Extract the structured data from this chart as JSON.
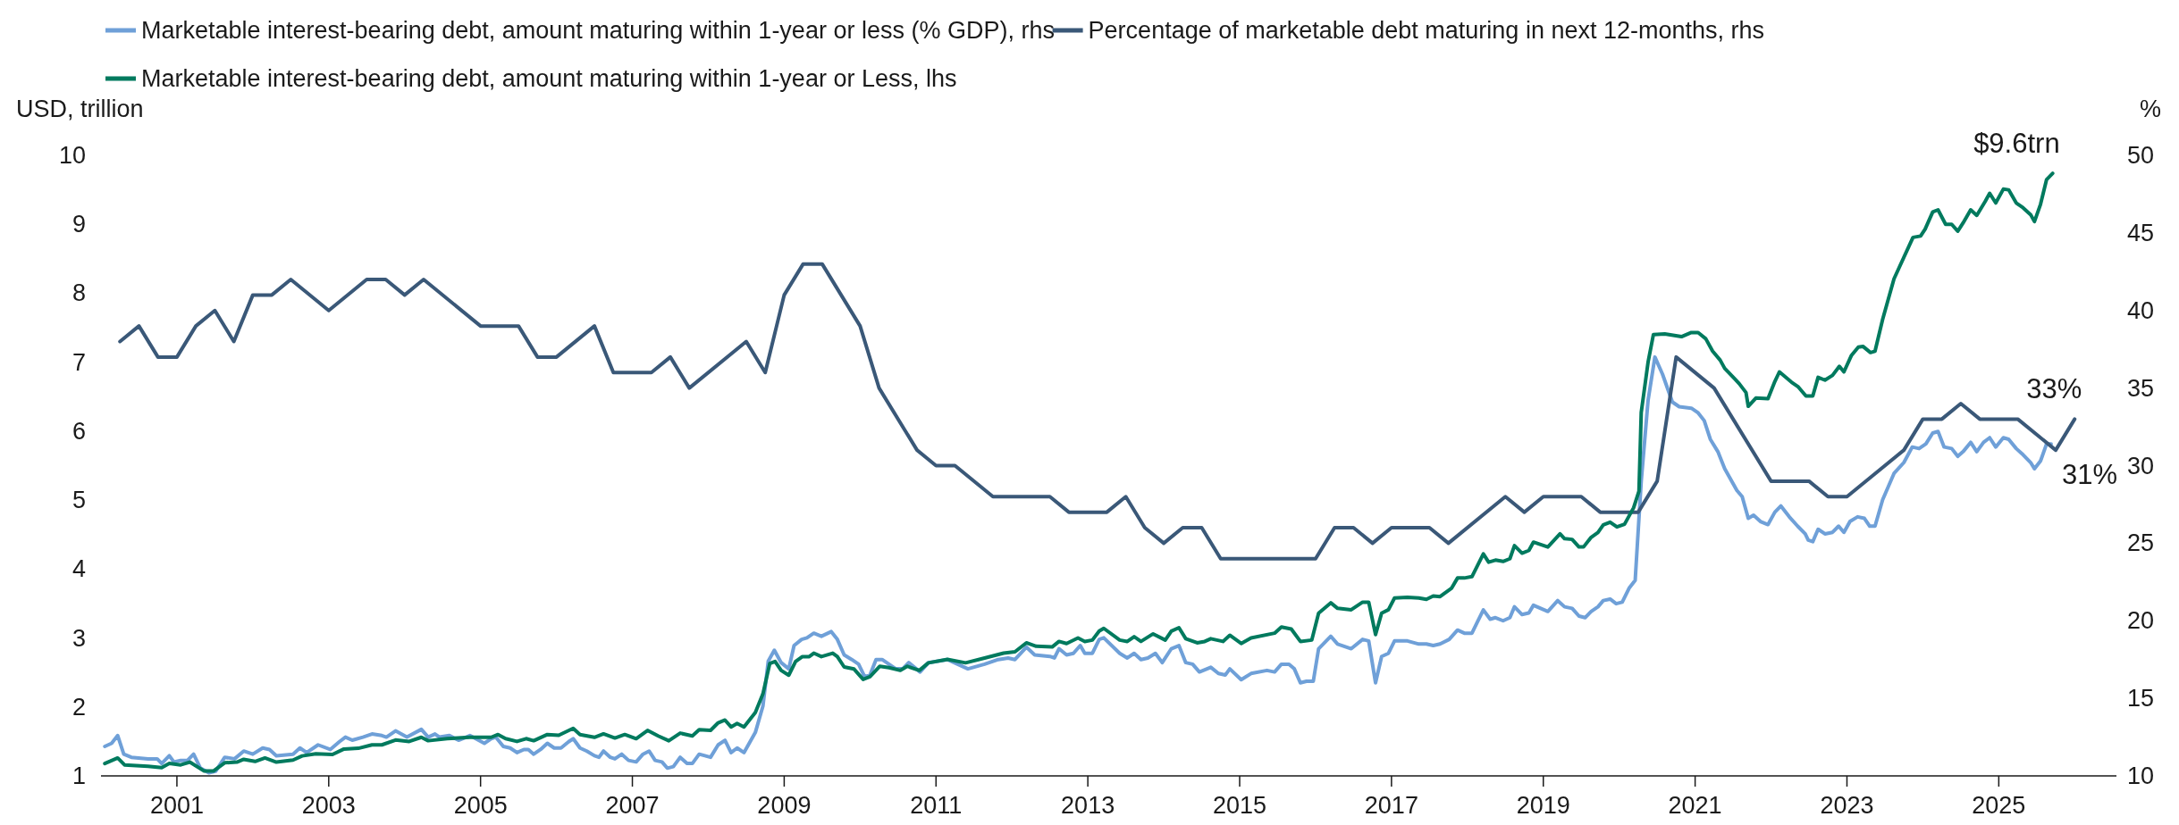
{
  "chart_data": {
    "type": "line",
    "ylabel": "USD, trillion",
    "y2label": "%",
    "legend": "top",
    "xlim": [
      2000,
      2026.55
    ],
    "xticks": [
      2001,
      2003,
      2005,
      2007,
      2009,
      2011,
      2013,
      2015,
      2017,
      2019,
      2021,
      2023,
      2025
    ],
    "ylim": [
      1,
      10
    ],
    "yticks": [
      1,
      2,
      3,
      4,
      5,
      6,
      7,
      8,
      9,
      10
    ],
    "y2lim": [
      10,
      50
    ],
    "y2ticks": [
      10,
      15,
      20,
      25,
      30,
      35,
      40,
      45,
      50
    ],
    "annotations": [
      "31%",
      "33%",
      "$9.6trn"
    ],
    "series": [
      {
        "name": "Marketable interest-bearing debt, amount maturing within 1-year or less (% GDP), rhs",
        "color": "#6fa0d8",
        "axis": "y2",
        "x": [
          2000.05,
          2000.14,
          2000.22,
          2000.3,
          2000.4,
          2000.62,
          2000.74,
          2000.8,
          2000.9,
          2000.96,
          2001.05,
          2001.14,
          2001.22,
          2001.31,
          2001.42,
          2001.51,
          2001.63,
          2001.76,
          2001.88,
          2002.0,
          2002.13,
          2002.22,
          2002.31,
          2002.53,
          2002.62,
          2002.71,
          2002.86,
          2003.02,
          2003.14,
          2003.22,
          2003.31,
          2003.45,
          2003.57,
          2003.7,
          2003.76,
          2003.88,
          2004.03,
          2004.22,
          2004.31,
          2004.4,
          2004.46,
          2004.59,
          2004.71,
          2004.86,
          2005.05,
          2005.14,
          2005.2,
          2005.3,
          2005.39,
          2005.48,
          2005.57,
          2005.63,
          2005.7,
          2005.79,
          2005.88,
          2005.97,
          2006.06,
          2006.16,
          2006.22,
          2006.31,
          2006.4,
          2006.5,
          2006.56,
          2006.62,
          2006.71,
          2006.77,
          2006.86,
          2006.95,
          2007.05,
          2007.14,
          2007.22,
          2007.3,
          2007.39,
          2007.46,
          2007.54,
          2007.63,
          2007.72,
          2007.79,
          2007.88,
          2008.03,
          2008.13,
          2008.22,
          2008.3,
          2008.38,
          2008.47,
          2008.62,
          2008.72,
          2008.79,
          2008.87,
          2008.96,
          2009.06,
          2009.13,
          2009.23,
          2009.3,
          2009.39,
          2009.49,
          2009.62,
          2009.7,
          2009.79,
          2009.89,
          2009.98,
          2010.06,
          2010.13,
          2010.21,
          2010.29,
          2010.47,
          2010.56,
          2010.64,
          2010.79,
          2010.9,
          2011.15,
          2011.42,
          2011.64,
          2011.82,
          2011.95,
          2012.04,
          2012.19,
          2012.3,
          2012.5,
          2012.56,
          2012.62,
          2012.72,
          2012.81,
          2012.9,
          2012.96,
          2013.06,
          2013.15,
          2013.21,
          2013.42,
          2013.52,
          2013.61,
          2013.7,
          2013.79,
          2013.89,
          2013.98,
          2014.1,
          2014.2,
          2014.29,
          2014.38,
          2014.47,
          2014.62,
          2014.72,
          2014.81,
          2014.87,
          2015.02,
          2015.15,
          2015.36,
          2015.46,
          2015.55,
          2015.65,
          2015.72,
          2015.8,
          2015.88,
          2015.97,
          2016.04,
          2016.2,
          2016.29,
          2016.47,
          2016.62,
          2016.7,
          2016.79,
          2016.87,
          2016.96,
          2017.04,
          2017.21,
          2017.36,
          2017.46,
          2017.55,
          2017.64,
          2017.76,
          2017.87,
          2017.96,
          2018.06,
          2018.12,
          2018.21,
          2018.3,
          2018.37,
          2018.47,
          2018.56,
          2018.62,
          2018.72,
          2018.81,
          2018.87,
          2019.06,
          2019.19,
          2019.28,
          2019.38,
          2019.47,
          2019.55,
          2019.63,
          2019.72,
          2019.79,
          2019.88,
          2019.96,
          2020.04,
          2020.13,
          2020.21,
          2020.29,
          2020.38,
          2020.47,
          2020.57,
          2020.7,
          2020.79,
          2020.95,
          2021.04,
          2021.12,
          2021.2,
          2021.3,
          2021.39,
          2021.55,
          2021.62,
          2021.7,
          2021.77,
          2021.86,
          2021.96,
          2022.05,
          2022.13,
          2022.24,
          2022.35,
          2022.45,
          2022.49,
          2022.55,
          2022.62,
          2022.71,
          2022.81,
          2022.89,
          2022.96,
          2023.04,
          2023.14,
          2023.23,
          2023.3,
          2023.37,
          2023.47,
          2023.62,
          2023.75,
          2023.86,
          2023.95,
          2024.04,
          2024.13,
          2024.2,
          2024.28,
          2024.38,
          2024.46,
          2024.53,
          2024.63,
          2024.71,
          2024.8,
          2024.88,
          2024.96,
          2025.06,
          2025.13,
          2025.23,
          2025.32,
          2025.42,
          2025.47,
          2025.55,
          2025.63,
          2025.69
        ],
        "values": [
          11.9,
          12.1,
          12.6,
          11.4,
          11.2,
          11.1,
          11.1,
          10.8,
          11.3,
          10.9,
          11.0,
          11.0,
          11.4,
          10.5,
          10.2,
          10.3,
          11.2,
          11.1,
          11.6,
          11.4,
          11.8,
          11.7,
          11.3,
          11.4,
          11.8,
          11.5,
          12.0,
          11.7,
          12.2,
          12.5,
          12.3,
          12.5,
          12.7,
          12.6,
          12.5,
          12.9,
          12.5,
          13.0,
          12.5,
          12.7,
          12.5,
          12.6,
          12.3,
          12.6,
          12.1,
          12.4,
          12.5,
          11.9,
          11.8,
          11.5,
          11.7,
          11.7,
          11.4,
          11.7,
          12.1,
          11.8,
          11.8,
          12.2,
          12.4,
          11.8,
          11.6,
          11.3,
          11.2,
          11.6,
          11.2,
          11.1,
          11.4,
          11.0,
          10.9,
          11.4,
          11.6,
          11.0,
          10.9,
          10.5,
          10.6,
          11.2,
          10.8,
          10.8,
          11.4,
          11.2,
          12.0,
          12.3,
          11.5,
          11.8,
          11.5,
          12.8,
          14.5,
          17.4,
          18.1,
          17.3,
          16.9,
          18.4,
          18.8,
          18.9,
          19.2,
          19.0,
          19.3,
          18.8,
          17.8,
          17.5,
          17.2,
          16.4,
          16.5,
          17.5,
          17.5,
          16.9,
          16.9,
          17.3,
          16.7,
          17.3,
          17.5,
          16.9,
          17.2,
          17.5,
          17.6,
          17.5,
          18.3,
          17.8,
          17.7,
          17.6,
          18.2,
          17.8,
          17.9,
          18.4,
          17.9,
          17.9,
          18.8,
          18.9,
          17.9,
          17.6,
          17.9,
          17.5,
          17.6,
          17.9,
          17.3,
          18.2,
          18.4,
          17.3,
          17.2,
          16.7,
          17.0,
          16.6,
          16.5,
          16.9,
          16.2,
          16.6,
          16.8,
          16.7,
          17.2,
          17.2,
          16.9,
          16.0,
          16.1,
          16.1,
          18.2,
          19.0,
          18.5,
          18.2,
          18.8,
          18.7,
          16.0,
          17.7,
          17.9,
          18.7,
          18.7,
          18.5,
          18.5,
          18.4,
          18.5,
          18.8,
          19.4,
          19.2,
          19.2,
          19.8,
          20.7,
          20.1,
          20.2,
          20.0,
          20.2,
          20.9,
          20.4,
          20.5,
          21.0,
          20.6,
          21.3,
          20.9,
          20.8,
          20.3,
          20.2,
          20.6,
          20.9,
          21.3,
          21.4,
          21.1,
          21.2,
          22.1,
          22.6,
          29.0,
          34.2,
          37.0,
          35.9,
          34.1,
          33.8,
          33.7,
          33.4,
          32.9,
          31.7,
          30.9,
          29.8,
          28.4,
          28.0,
          26.6,
          26.8,
          26.4,
          26.2,
          27.0,
          27.4,
          26.7,
          26.1,
          25.6,
          25.2,
          25.1,
          25.9,
          25.6,
          25.7,
          26.1,
          25.7,
          26.4,
          26.7,
          26.6,
          26.1,
          26.1,
          27.8,
          29.5,
          30.2,
          31.2,
          31.1,
          31.4,
          32.1,
          32.2,
          31.2,
          31.1,
          30.6,
          30.9,
          31.5,
          30.9,
          31.5,
          31.8,
          31.2,
          31.8,
          31.7,
          31.1,
          30.7,
          30.2,
          29.8,
          30.3,
          31.4,
          31.4
        ]
      },
      {
        "name": "Percentage of marketable debt maturing in next 12-months, rhs",
        "color": "#3a5878",
        "axis": "y2",
        "x": [
          2000.25,
          2000.5,
          2000.75,
          2001,
          2001.25,
          2001.5,
          2001.75,
          2002,
          2002.25,
          2002.5,
          2003,
          2003.5,
          2003.75,
          2004,
          2004.25,
          2005,
          2005.5,
          2005.75,
          2006,
          2006.5,
          2006.75,
          2007.25,
          2007.5,
          2007.75,
          2008.5,
          2008.75,
          2009,
          2009.25,
          2009.5,
          2010,
          2010.25,
          2010.75,
          2011,
          2011.25,
          2011.75,
          2012.5,
          2012.75,
          2013.25,
          2013.5,
          2013.75,
          2014,
          2014.25,
          2014.5,
          2014.75,
          2016,
          2016.25,
          2016.5,
          2016.75,
          2017,
          2017.5,
          2017.75,
          2018.5,
          2018.75,
          2019,
          2019.5,
          2019.75,
          2020.25,
          2020.5,
          2020.75,
          2021.25,
          2022,
          2022.5,
          2022.75,
          2023,
          2023.75,
          2024,
          2024.25,
          2024.5,
          2024.75,
          2025.25,
          2025.75,
          2026
        ],
        "values": [
          38,
          39,
          37,
          37,
          39,
          40,
          38,
          41,
          41,
          42,
          40,
          42,
          42,
          41,
          42,
          39,
          39,
          37,
          37,
          39,
          36,
          36,
          37,
          35,
          38,
          36,
          41,
          43,
          43,
          39,
          35,
          31,
          30,
          30,
          28,
          28,
          27,
          27,
          28,
          26,
          25,
          26,
          26,
          24,
          24,
          26,
          26,
          25,
          26,
          26,
          25,
          28,
          27,
          28,
          28,
          27,
          27,
          29,
          37,
          35,
          29,
          29,
          28,
          28,
          31,
          33,
          33,
          34,
          33,
          33,
          31,
          33
        ]
      },
      {
        "name": "Marketable interest-bearing debt, amount maturing within 1-year or Less, lhs",
        "color": "#007a5e",
        "x": [
          2000.05,
          2000.22,
          2000.31,
          2000.62,
          2000.8,
          2000.9,
          2001.05,
          2001.17,
          2001.36,
          2001.48,
          2001.63,
          2001.79,
          2001.88,
          2002.03,
          2002.16,
          2002.31,
          2002.53,
          2002.65,
          2002.83,
          2003.05,
          2003.2,
          2003.39,
          2003.57,
          2003.7,
          2003.88,
          2004.06,
          2004.22,
          2004.31,
          2004.56,
          2004.86,
          2005.14,
          2005.23,
          2005.33,
          2005.48,
          2005.6,
          2005.7,
          2005.88,
          2006.03,
          2006.22,
          2006.31,
          2006.5,
          2006.62,
          2006.77,
          2006.9,
          2007.05,
          2007.2,
          2007.34,
          2007.48,
          2007.63,
          2007.79,
          2007.88,
          2008.03,
          2008.13,
          2008.22,
          2008.3,
          2008.38,
          2008.47,
          2008.62,
          2008.72,
          2008.81,
          2008.88,
          2008.96,
          2009.06,
          2009.15,
          2009.24,
          2009.33,
          2009.39,
          2009.49,
          2009.64,
          2009.7,
          2009.79,
          2009.92,
          2010.04,
          2010.13,
          2010.26,
          2010.38,
          2010.53,
          2010.62,
          2010.78,
          2010.9,
          2011.15,
          2011.39,
          2011.64,
          2011.89,
          2012.04,
          2012.19,
          2012.32,
          2012.53,
          2012.62,
          2012.72,
          2012.87,
          2012.96,
          2013.06,
          2013.15,
          2013.21,
          2013.42,
          2013.52,
          2013.61,
          2013.7,
          2013.86,
          2014.02,
          2014.1,
          2014.2,
          2014.29,
          2014.44,
          2014.54,
          2014.62,
          2014.78,
          2014.87,
          2015.02,
          2015.15,
          2015.46,
          2015.55,
          2015.68,
          2015.8,
          2015.95,
          2016.04,
          2016.2,
          2016.29,
          2016.47,
          2016.62,
          2016.7,
          2016.79,
          2016.87,
          2016.96,
          2017.04,
          2017.21,
          2017.36,
          2017.46,
          2017.55,
          2017.64,
          2017.79,
          2017.87,
          2017.96,
          2018.06,
          2018.21,
          2018.28,
          2018.37,
          2018.47,
          2018.56,
          2018.62,
          2018.72,
          2018.81,
          2018.87,
          2019.06,
          2019.22,
          2019.28,
          2019.38,
          2019.47,
          2019.53,
          2019.63,
          2019.72,
          2019.79,
          2019.88,
          2019.97,
          2020.07,
          2020.19,
          2020.26,
          2020.29,
          2020.38,
          2020.45,
          2020.6,
          2020.82,
          2020.95,
          2021.04,
          2021.14,
          2021.23,
          2021.33,
          2021.39,
          2021.52,
          2021.58,
          2021.67,
          2021.7,
          2021.8,
          2021.96,
          2022.05,
          2022.11,
          2022.27,
          2022.36,
          2022.46,
          2022.55,
          2022.62,
          2022.71,
          2022.81,
          2022.9,
          2022.96,
          2023.06,
          2023.15,
          2023.21,
          2023.31,
          2023.37,
          2023.47,
          2023.62,
          2023.87,
          2023.97,
          2024.03,
          2024.13,
          2024.2,
          2024.3,
          2024.38,
          2024.46,
          2024.53,
          2024.63,
          2024.71,
          2024.82,
          2024.88,
          2024.96,
          2025.06,
          2025.13,
          2025.23,
          2025.32,
          2025.42,
          2025.47,
          2025.55,
          2025.63,
          2025.71
        ],
        "values": [
          1.18,
          1.26,
          1.16,
          1.14,
          1.12,
          1.18,
          1.16,
          1.2,
          1.07,
          1.07,
          1.19,
          1.2,
          1.24,
          1.21,
          1.26,
          1.2,
          1.23,
          1.29,
          1.32,
          1.31,
          1.39,
          1.4,
          1.45,
          1.45,
          1.52,
          1.5,
          1.56,
          1.51,
          1.54,
          1.56,
          1.56,
          1.6,
          1.54,
          1.5,
          1.54,
          1.51,
          1.6,
          1.59,
          1.69,
          1.6,
          1.56,
          1.61,
          1.55,
          1.6,
          1.54,
          1.66,
          1.58,
          1.51,
          1.62,
          1.58,
          1.67,
          1.66,
          1.77,
          1.81,
          1.71,
          1.76,
          1.71,
          1.92,
          2.19,
          2.63,
          2.66,
          2.53,
          2.46,
          2.66,
          2.73,
          2.73,
          2.78,
          2.73,
          2.78,
          2.73,
          2.58,
          2.55,
          2.4,
          2.44,
          2.59,
          2.57,
          2.53,
          2.59,
          2.53,
          2.64,
          2.69,
          2.64,
          2.71,
          2.78,
          2.8,
          2.93,
          2.88,
          2.87,
          2.95,
          2.92,
          3.0,
          2.95,
          2.97,
          3.1,
          3.14,
          2.97,
          2.95,
          3.02,
          2.95,
          3.06,
          2.97,
          3.1,
          3.15,
          2.99,
          2.93,
          2.95,
          2.99,
          2.95,
          3.04,
          2.92,
          3.0,
          3.07,
          3.16,
          3.13,
          2.95,
          2.97,
          3.36,
          3.51,
          3.43,
          3.41,
          3.52,
          3.52,
          3.05,
          3.36,
          3.41,
          3.58,
          3.59,
          3.58,
          3.56,
          3.61,
          3.6,
          3.72,
          3.87,
          3.87,
          3.89,
          4.22,
          4.1,
          4.13,
          4.11,
          4.15,
          4.34,
          4.23,
          4.27,
          4.39,
          4.32,
          4.51,
          4.44,
          4.43,
          4.32,
          4.32,
          4.46,
          4.53,
          4.64,
          4.68,
          4.61,
          4.65,
          4.89,
          5.13,
          6.27,
          7.0,
          7.4,
          7.41,
          7.37,
          7.43,
          7.43,
          7.34,
          7.16,
          7.03,
          6.91,
          6.76,
          6.69,
          6.56,
          6.36,
          6.48,
          6.47,
          6.72,
          6.86,
          6.71,
          6.64,
          6.51,
          6.51,
          6.78,
          6.74,
          6.81,
          6.94,
          6.86,
          7.1,
          7.22,
          7.23,
          7.14,
          7.16,
          7.62,
          8.21,
          8.81,
          8.83,
          8.93,
          9.18,
          9.21,
          9.0,
          9.0,
          8.9,
          9.02,
          9.21,
          9.13,
          9.33,
          9.45,
          9.31,
          9.51,
          9.5,
          9.31,
          9.24,
          9.14,
          9.04,
          9.29,
          9.65,
          9.74
        ]
      }
    ]
  }
}
